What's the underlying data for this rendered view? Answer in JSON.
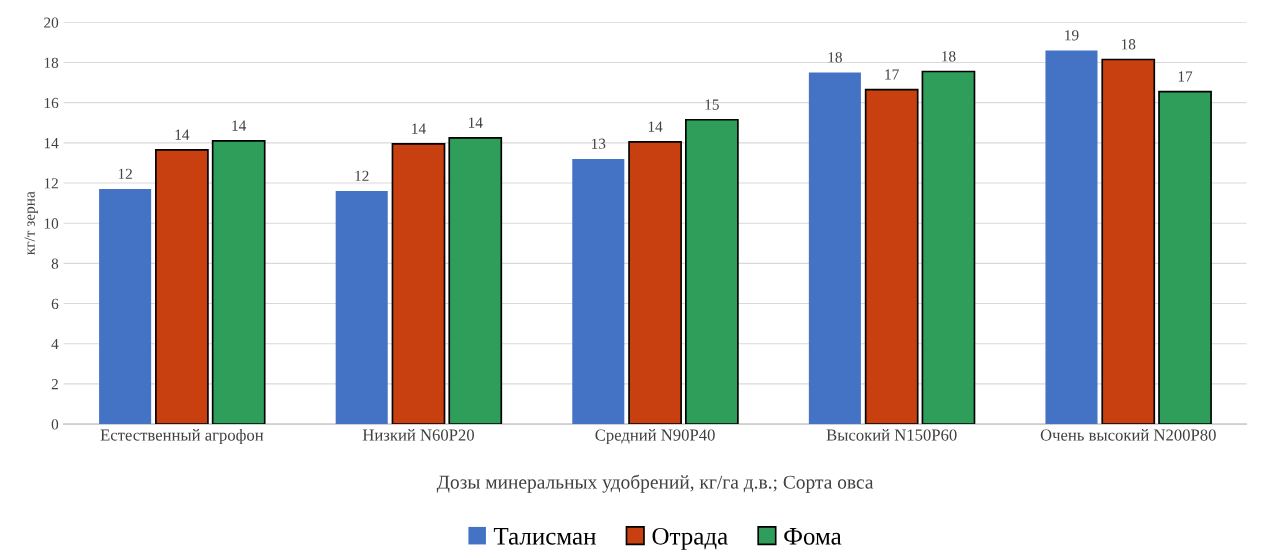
{
  "chart_data": {
    "type": "bar",
    "xlabel": "Дозы минеральных удобрений, кг/га д.в.; Сорта овса",
    "ylabel": "кг/т зерна",
    "categories": [
      "Естественный агрофон",
      "Низкий N60P20",
      "Средний N90P40",
      "Высокий N150P60",
      "Очень высокий N200P80"
    ],
    "series": [
      {
        "name": "Талисман",
        "color": "#4472c4",
        "values": [
          11.7,
          11.6,
          13.2,
          17.5,
          18.6
        ],
        "value_labels": [
          "12",
          "12",
          "13",
          "18",
          "19"
        ]
      },
      {
        "name": "Отрада",
        "color": "#c8400f",
        "values": [
          13.65,
          13.95,
          14.05,
          16.65,
          18.15
        ],
        "value_labels": [
          "14",
          "14",
          "14",
          "17",
          "18"
        ]
      },
      {
        "name": "Фома",
        "color": "#2e9e5a",
        "values": [
          14.1,
          14.25,
          15.15,
          17.55,
          16.55
        ],
        "value_labels": [
          "14",
          "14",
          "15",
          "18",
          "17"
        ]
      }
    ],
    "ylim": [
      0,
      20
    ],
    "yticks": [
      0,
      2,
      4,
      6,
      8,
      10,
      12,
      14,
      16,
      18,
      20
    ],
    "grid": "y",
    "legend": "bottom"
  }
}
